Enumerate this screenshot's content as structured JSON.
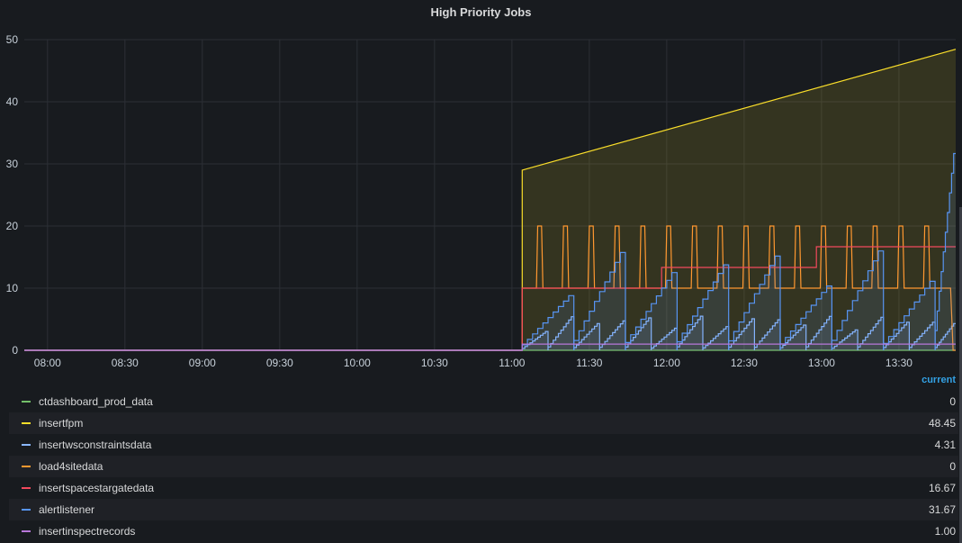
{
  "panel": {
    "title": "High Priority Jobs"
  },
  "legend": {
    "column_header": "current"
  },
  "chart_data": {
    "type": "line",
    "title": "High Priority Jobs",
    "xlabel": "",
    "ylabel": "",
    "x_ticks": [
      "08:00",
      "08:30",
      "09:00",
      "09:30",
      "10:00",
      "10:30",
      "11:00",
      "11:30",
      "12:00",
      "12:30",
      "13:00",
      "13:30"
    ],
    "y_ticks": [
      0,
      10,
      20,
      30,
      40,
      50
    ],
    "xlim_minutes": [
      "07:51",
      "13:52"
    ],
    "ylim": [
      0,
      50
    ],
    "grid": true,
    "legend_placement": "bottom",
    "series": [
      {
        "name": "ctdashboard_prod_data",
        "color": "#73bf69",
        "current": "0",
        "points": [
          [
            "07:51",
            0
          ],
          [
            "13:52",
            0
          ]
        ]
      },
      {
        "name": "insertfpm",
        "color": "#fade2a",
        "current": "48.45",
        "fill": true,
        "points": [
          [
            "07:51",
            0
          ],
          [
            "11:04",
            0
          ],
          [
            "11:04",
            29
          ],
          [
            "13:52",
            48.45
          ]
        ]
      },
      {
        "name": "insertwsconstraintsdata",
        "color": "#8ab8ff",
        "current": "4.31",
        "sawtooth": {
          "start": "11:04",
          "period_min": 10,
          "peak": 5.5,
          "last": 4.31
        }
      },
      {
        "name": "load4sitedata",
        "color": "#ff9830",
        "current": "0",
        "pulses": {
          "start": "11:04",
          "period_min": 10,
          "base": 10,
          "high": 20,
          "low": 0
        }
      },
      {
        "name": "insertspacestargatedata",
        "color": "#f2495c",
        "current": "16.67",
        "points": [
          [
            "07:51",
            0
          ],
          [
            "11:04",
            0
          ],
          [
            "11:04",
            10
          ],
          [
            "11:58",
            10
          ],
          [
            "11:58",
            13.33
          ],
          [
            "12:58",
            13.33
          ],
          [
            "12:58",
            16.67
          ],
          [
            "13:52",
            16.67
          ]
        ]
      },
      {
        "name": "alertlistener",
        "color": "#5794f2",
        "current": "31.67",
        "sawtooth": {
          "start": "11:04",
          "period_min": 20,
          "peak": 16,
          "last": 31.67
        }
      },
      {
        "name": "insertinspectrecords",
        "color": "#b877d9",
        "current": "1.00",
        "points": [
          [
            "07:51",
            0
          ],
          [
            "11:04",
            0
          ],
          [
            "11:04",
            1
          ],
          [
            "13:52",
            1
          ]
        ]
      }
    ]
  }
}
